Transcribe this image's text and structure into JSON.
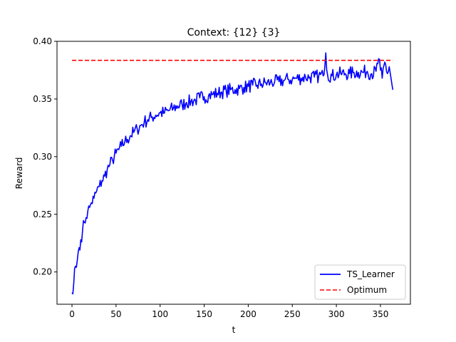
{
  "chart_data": {
    "type": "line",
    "title": "Context: {12} {3}",
    "xlabel": "t",
    "ylabel": "Reward",
    "xlim": [
      -17,
      384
    ],
    "ylim": [
      0.172,
      0.4
    ],
    "xticks": [
      0,
      50,
      100,
      150,
      200,
      250,
      300,
      350
    ],
    "yticks": [
      0.2,
      0.25,
      0.3,
      0.35,
      0.4
    ],
    "ytick_labels": [
      "0.20",
      "0.25",
      "0.30",
      "0.35",
      "0.40"
    ],
    "grid": false,
    "legend": {
      "placement": "lower-right"
    },
    "series": [
      {
        "name": "TS_Learner",
        "color": "#0000ff",
        "style": "solid",
        "anchors": {
          "x": [
            0,
            1,
            2,
            3,
            4,
            5,
            6,
            7,
            8,
            9,
            10,
            12,
            14,
            16,
            18,
            20,
            22,
            25,
            28,
            31,
            34,
            37,
            40,
            43,
            46,
            50,
            53,
            56,
            60,
            63,
            66,
            70,
            74,
            78,
            82,
            86,
            90,
            95,
            100,
            105,
            110,
            115,
            120,
            125,
            130,
            135,
            140,
            145,
            150,
            155,
            160,
            165,
            170,
            175,
            180,
            185,
            190,
            195,
            200,
            205,
            210,
            215,
            220,
            225,
            230,
            235,
            240,
            245,
            250,
            255,
            260,
            265,
            270,
            275,
            280,
            285,
            288,
            290,
            295,
            300,
            305,
            310,
            315,
            320,
            325,
            330,
            335,
            340,
            345,
            348,
            350,
            352,
            355,
            358,
            360,
            362,
            364
          ],
          "y": [
            0.182,
            0.181,
            0.19,
            0.203,
            0.205,
            0.204,
            0.21,
            0.217,
            0.221,
            0.219,
            0.228,
            0.236,
            0.243,
            0.247,
            0.253,
            0.256,
            0.26,
            0.264,
            0.27,
            0.274,
            0.279,
            0.283,
            0.289,
            0.293,
            0.297,
            0.303,
            0.306,
            0.309,
            0.313,
            0.315,
            0.318,
            0.321,
            0.324,
            0.327,
            0.33,
            0.332,
            0.334,
            0.336,
            0.338,
            0.338,
            0.34,
            0.342,
            0.344,
            0.345,
            0.347,
            0.348,
            0.349,
            0.351,
            0.352,
            0.353,
            0.354,
            0.355,
            0.356,
            0.357,
            0.358,
            0.358,
            0.359,
            0.36,
            0.361,
            0.362,
            0.362,
            0.363,
            0.364,
            0.364,
            0.365,
            0.365,
            0.366,
            0.367,
            0.367,
            0.368,
            0.368,
            0.369,
            0.369,
            0.369,
            0.37,
            0.37,
            0.39,
            0.371,
            0.37,
            0.371,
            0.372,
            0.372,
            0.372,
            0.373,
            0.373,
            0.373,
            0.374,
            0.372,
            0.374,
            0.385,
            0.375,
            0.368,
            0.382,
            0.372,
            0.378,
            0.368,
            0.358
          ]
        },
        "noise_amplitude": 0.006,
        "points": 365
      },
      {
        "name": "Optimum",
        "color": "#ff0000",
        "style": "dashed",
        "x": [
          0,
          364
        ],
        "y": [
          0.3835,
          0.3835
        ]
      }
    ]
  }
}
